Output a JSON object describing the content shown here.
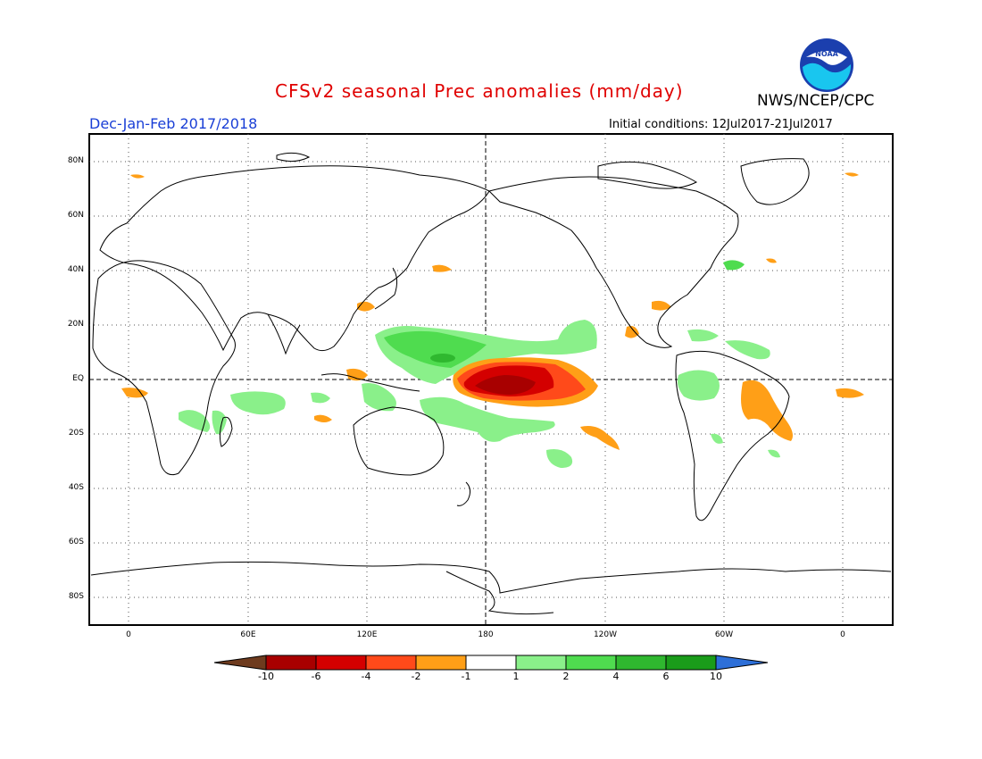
{
  "title": "CFSv2 seasonal Prec anomalies (mm/day)",
  "period": "Dec-Jan-Feb 2017/2018",
  "initial_conditions": "Initial conditions: 12Jul2017-21Jul2017",
  "agency": "NWS/NCEP/CPC",
  "logo_text": "NOAA",
  "lat_labels": [
    "80N",
    "60N",
    "40N",
    "20N",
    "EQ",
    "20S",
    "40S",
    "60S",
    "80S"
  ],
  "lon_labels": [
    "0",
    "60E",
    "120E",
    "180",
    "120W",
    "60W",
    "0"
  ],
  "colorbar": {
    "labels": [
      "-10",
      "-6",
      "-4",
      "-2",
      "-1",
      "1",
      "2",
      "4",
      "6",
      "10"
    ],
    "colors": [
      "#6e3b1e",
      "#a80000",
      "#d40000",
      "#ff4a1a",
      "#ff9f17",
      "#ffffff",
      "#8af08a",
      "#4fdc4f",
      "#2fb82f",
      "#1a9c1a",
      "#2d6fd8"
    ]
  }
}
